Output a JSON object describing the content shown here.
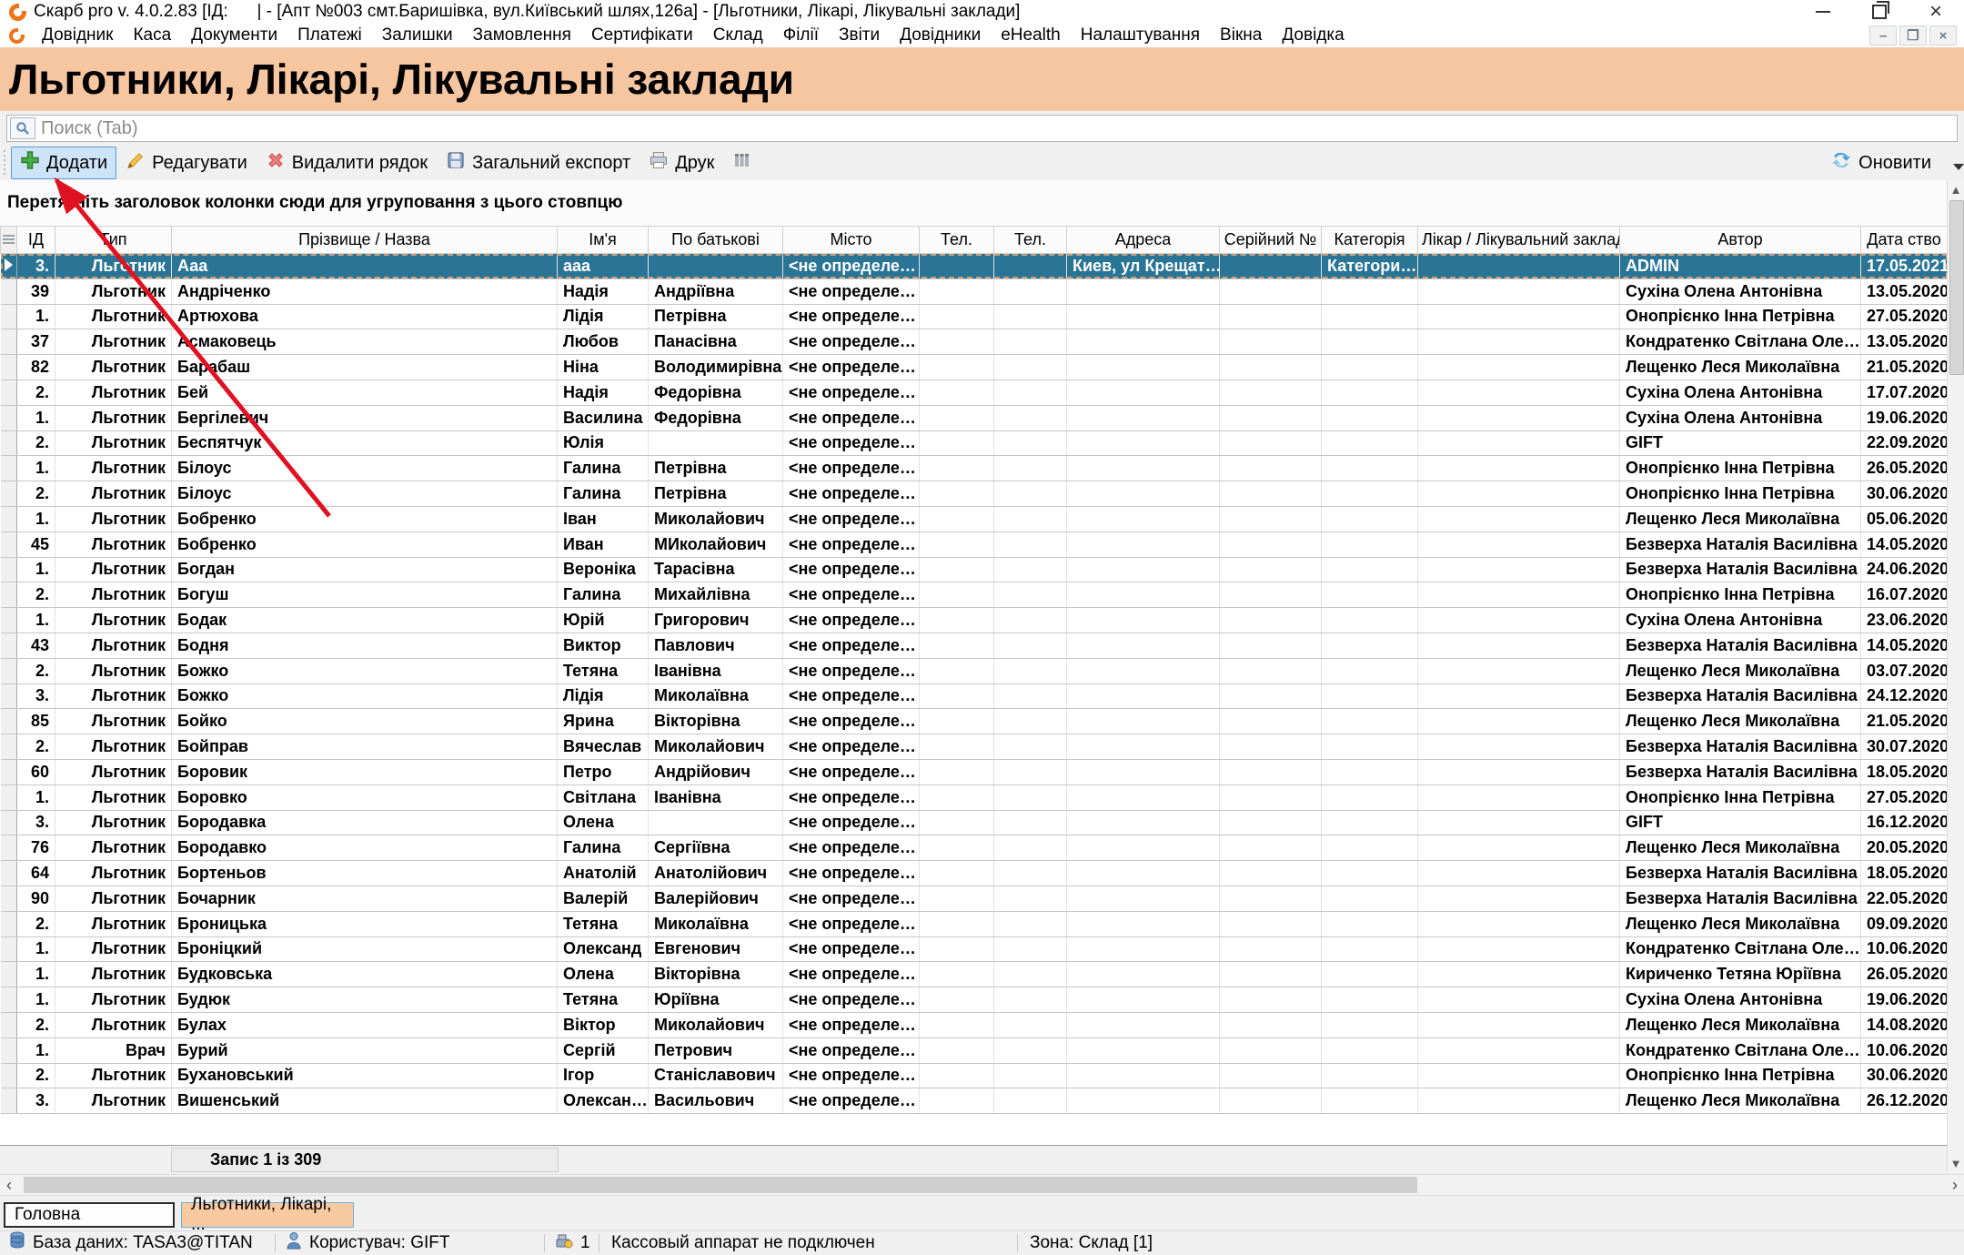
{
  "window": {
    "title": "Скарб pro v. 4.0.2.83 [ІД:      | - [Апт №003 смт.Баришівка, вул.Київський шлях,126а] - [Льготники, Лікарі, Лікувальні заклади]"
  },
  "menu": {
    "items": [
      "Довідник",
      "Каса",
      "Документи",
      "Платежі",
      "Залишки",
      "Замовлення",
      "Сертифікати",
      "Склад",
      "Філії",
      "Звіти",
      "Довідники",
      "eHealth",
      "Налаштування",
      "Вікна",
      "Довідка"
    ]
  },
  "page": {
    "heading": "Льготники, Лікарі, Лікувальні заклади"
  },
  "search": {
    "placeholder": "Поиск (Tab)"
  },
  "toolbar": {
    "add": "Додати",
    "edit": "Редагувати",
    "delete": "Видалити рядок",
    "export": "Загальний експорт",
    "print": "Друк",
    "refresh": "Оновити"
  },
  "grid": {
    "group_hint": "Перетягніть заголовок колонки сюди для угруповання з цього стовпцю",
    "columns": [
      "ІД",
      "Тип",
      "Прізвище / Назва",
      "Ім'я",
      "По батькові",
      "Місто",
      "Тел.",
      "Тел.",
      "Адреса",
      "Серійний №",
      "Категорія",
      "Лікар / Лікувальний заклад",
      "Автор",
      "Дата ство"
    ],
    "selected_row_index": 0,
    "rows": [
      [
        "3.",
        "Льготник",
        "Ааа",
        "ааа",
        "",
        "<не определе…",
        "",
        "",
        "Киев, ул Крещат…",
        "",
        "Категори…",
        "",
        "ADMIN",
        "17.05.2021"
      ],
      [
        "39",
        "Льготник",
        "Андріченко",
        "Надія",
        "Андріївна",
        "<не определе…",
        "",
        "",
        "",
        "",
        "",
        "",
        "Сухіна Олена Антонівна",
        "13.05.2020"
      ],
      [
        "1.",
        "Льготник",
        "Артюхова",
        "Лідія",
        "Петрівна",
        "<не определе…",
        "",
        "",
        "",
        "",
        "",
        "",
        "Онопрієнко Інна Петрівна",
        "27.05.2020"
      ],
      [
        "37",
        "Льготник",
        "Асмаковець",
        "Любов",
        "Панасівна",
        "<не определе…",
        "",
        "",
        "",
        "",
        "",
        "",
        "Кондратенко Світлана Оле…",
        "13.05.2020"
      ],
      [
        "82",
        "Льготник",
        "Барабаш",
        "Ніна",
        "Володимирівна",
        "<не определе…",
        "",
        "",
        "",
        "",
        "",
        "",
        "Лещенко Леся Миколаївна",
        "21.05.2020"
      ],
      [
        "2.",
        "Льготник",
        "Бей",
        "Надія",
        "Федорівна",
        "<не определе…",
        "",
        "",
        "",
        "",
        "",
        "",
        "Сухіна Олена Антонівна",
        "17.07.2020"
      ],
      [
        "1.",
        "Льготник",
        "Бергілевич",
        "Василина",
        "Федорівна",
        "<не определе…",
        "",
        "",
        "",
        "",
        "",
        "",
        "Сухіна Олена Антонівна",
        "19.06.2020"
      ],
      [
        "2.",
        "Льготник",
        "Беспятчук",
        "Юлія",
        "",
        "<не определе…",
        "",
        "",
        "",
        "",
        "",
        "",
        "GIFT",
        "22.09.2020"
      ],
      [
        "1.",
        "Льготник",
        "Білоус",
        "Галина",
        "Петрівна",
        "<не определе…",
        "",
        "",
        "",
        "",
        "",
        "",
        "Онопрієнко Інна Петрівна",
        "26.05.2020"
      ],
      [
        "2.",
        "Льготник",
        "Білоус",
        "Галина",
        "Петрівна",
        "<не определе…",
        "",
        "",
        "",
        "",
        "",
        "",
        "Онопрієнко Інна Петрівна",
        "30.06.2020"
      ],
      [
        "1.",
        "Льготник",
        "Бобренко",
        "Іван",
        "Миколайович",
        "<не определе…",
        "",
        "",
        "",
        "",
        "",
        "",
        "Лещенко Леся Миколаївна",
        "05.06.2020"
      ],
      [
        "45",
        "Льготник",
        "Бобренко",
        "Иван",
        "МИколайович",
        "<не определе…",
        "",
        "",
        "",
        "",
        "",
        "",
        "Безверха Наталія Василівна",
        "14.05.2020"
      ],
      [
        "1.",
        "Льготник",
        "Богдан",
        "Вероніка",
        "Тарасівна",
        "<не определе…",
        "",
        "",
        "",
        "",
        "",
        "",
        "Безверха Наталія Василівна",
        "24.06.2020"
      ],
      [
        "2.",
        "Льготник",
        "Богуш",
        "Галина",
        "Михайлівна",
        "<не определе…",
        "",
        "",
        "",
        "",
        "",
        "",
        "Онопрієнко Інна Петрівна",
        "16.07.2020"
      ],
      [
        "1.",
        "Льготник",
        "Бодак",
        "Юрій",
        "Григорович",
        "<не определе…",
        "",
        "",
        "",
        "",
        "",
        "",
        "Сухіна Олена Антонівна",
        "23.06.2020"
      ],
      [
        "43",
        "Льготник",
        "Бодня",
        "Виктор",
        "Павлович",
        "<не определе…",
        "",
        "",
        "",
        "",
        "",
        "",
        "Безверха Наталія Василівна",
        "14.05.2020"
      ],
      [
        "2.",
        "Льготник",
        "Божко",
        "Тетяна",
        "Іванівна",
        "<не определе…",
        "",
        "",
        "",
        "",
        "",
        "",
        "Лещенко Леся Миколаївна",
        "03.07.2020"
      ],
      [
        "3.",
        "Льготник",
        "Божко",
        "Лідія",
        "Миколаївна",
        "<не определе…",
        "",
        "",
        "",
        "",
        "",
        "",
        "Безверха Наталія Василівна",
        "24.12.2020"
      ],
      [
        "85",
        "Льготник",
        "Бойко",
        "Ярина",
        "Вікторівна",
        "<не определе…",
        "",
        "",
        "",
        "",
        "",
        "",
        "Лещенко Леся Миколаївна",
        "21.05.2020"
      ],
      [
        "2.",
        "Льготник",
        "Бойправ",
        "Вячеслав",
        "Миколайович",
        "<не определе…",
        "",
        "",
        "",
        "",
        "",
        "",
        "Безверха Наталія Василівна",
        "30.07.2020"
      ],
      [
        "60",
        "Льготник",
        "Боровик",
        "Петро",
        "Андрійович",
        "<не определе…",
        "",
        "",
        "",
        "",
        "",
        "",
        "Безверха Наталія Василівна",
        "18.05.2020"
      ],
      [
        "1.",
        "Льготник",
        "Боровко",
        "Світлана",
        "Іванівна",
        "<не определе…",
        "",
        "",
        "",
        "",
        "",
        "",
        "Онопрієнко Інна Петрівна",
        "27.05.2020"
      ],
      [
        "3.",
        "Льготник",
        "Бородавка",
        "Олена",
        "",
        "<не определе…",
        "",
        "",
        "",
        "",
        "",
        "",
        "GIFT",
        "16.12.2020"
      ],
      [
        "76",
        "Льготник",
        "Бородавко",
        "Галина",
        "Сергіївна",
        "<не определе…",
        "",
        "",
        "",
        "",
        "",
        "",
        "Лещенко Леся Миколаївна",
        "20.05.2020"
      ],
      [
        "64",
        "Льготник",
        "Бортеньов",
        "Анатолій",
        "Анатолійович",
        "<не определе…",
        "",
        "",
        "",
        "",
        "",
        "",
        "Безверха Наталія Василівна",
        "18.05.2020"
      ],
      [
        "90",
        "Льготник",
        "Бочарник",
        "Валерій",
        "Валерійович",
        "<не определе…",
        "",
        "",
        "",
        "",
        "",
        "",
        "Безверха Наталія Василівна",
        "22.05.2020"
      ],
      [
        "2.",
        "Льготник",
        "Броницька",
        "Тетяна",
        "Миколаївна",
        "<не определе…",
        "",
        "",
        "",
        "",
        "",
        "",
        "Лещенко Леся Миколаївна",
        "09.09.2020"
      ],
      [
        "1.",
        "Льготник",
        "Броніцкий",
        "Олександ",
        "Евгенович",
        "<не определе…",
        "",
        "",
        "",
        "",
        "",
        "",
        "Кондратенко Світлана Оле…",
        "10.06.2020"
      ],
      [
        "1.",
        "Льготник",
        "Будковська",
        "Олена",
        "Вікторівна",
        "<не определе…",
        "",
        "",
        "",
        "",
        "",
        "",
        "Кириченко Тетяна Юріївна",
        "26.05.2020"
      ],
      [
        "1.",
        "Льготник",
        "Будюк",
        "Тетяна",
        "Юріївна",
        "<не определе…",
        "",
        "",
        "",
        "",
        "",
        "",
        "Сухіна Олена Антонівна",
        "19.06.2020"
      ],
      [
        "2.",
        "Льготник",
        "Булах",
        "Віктор",
        "Миколайович",
        "<не определе…",
        "",
        "",
        "",
        "",
        "",
        "",
        "Лещенко Леся Миколаївна",
        "14.08.2020"
      ],
      [
        "1.",
        "Врач",
        "Бурий",
        "Сергій",
        "Петрович",
        "<не определе…",
        "",
        "",
        "",
        "",
        "",
        "",
        "Кондратенко Світлана Оле…",
        "10.06.2020"
      ],
      [
        "2.",
        "Льготник",
        "Бухановський",
        "Ігор",
        "Станіславович",
        "<не определе…",
        "",
        "",
        "",
        "",
        "",
        "",
        "Онопрієнко Інна Петрівна",
        "30.06.2020"
      ],
      [
        "3.",
        "Льготник",
        "Вишенський",
        "Олексан…",
        "Васильович",
        "<не определе…",
        "",
        "",
        "",
        "",
        "",
        "",
        "Лещенко Леся Миколаївна",
        "26.12.2020"
      ]
    ],
    "footer": "Запис 1 із 309"
  },
  "tabs": {
    "items": [
      "Головна",
      "Льготники, Лікарі,  ..."
    ],
    "active_index": 1
  },
  "statusbar": {
    "database": "База даних: TASA3@TITAN",
    "user": "Користувач: GIFT",
    "counter": "1",
    "cash": "Кассовый аппарат не подключен",
    "zone": "Зона: Склад [1]"
  },
  "colors": {
    "heading_bg": "#f6c6a0",
    "selected_row_bg": "#2a7496",
    "active_button_bg": "#cde3f7",
    "active_tab_bg": "#f9c9a2",
    "annotation_arrow": "#e01222"
  }
}
